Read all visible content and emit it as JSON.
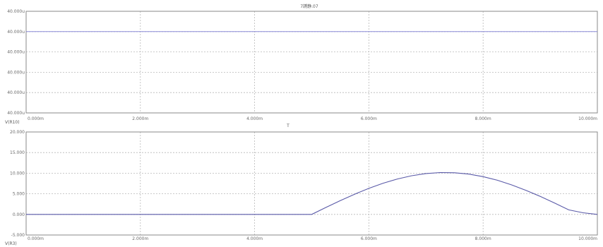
{
  "title": "7誘静.07",
  "x_axis_label": "T",
  "chart_data": [
    {
      "type": "line",
      "title": "7誘静.07",
      "xlabel": "",
      "ylabel": "",
      "trace_label": "V(R10)",
      "x_ticks": [
        "0.000m",
        "2.000m",
        "4.000m",
        "6.000m",
        "8.000m",
        "10.000m"
      ],
      "y_ticks": [
        "40.000u",
        "40.000u",
        "40.000u",
        "40.000u",
        "40.000u",
        "40.000u"
      ],
      "xlim": [
        0,
        10
      ],
      "ylim": [
        0,
        5
      ],
      "x_unit": "ms",
      "series": [
        {
          "x": [
            0,
            10
          ],
          "y": [
            4,
            4
          ]
        }
      ],
      "color": "#8c8cd8",
      "grid": true
    },
    {
      "type": "line",
      "xlabel": "T",
      "ylabel": "",
      "trace_label": "V(R3)",
      "x_ticks": [
        "0.000m",
        "2.000m",
        "4.000m",
        "6.000m",
        "8.000m",
        "10.000m"
      ],
      "y_ticks": [
        "20.000",
        "15.000",
        "10.000",
        "5.000",
        "0.000",
        "-5.000"
      ],
      "xlim": [
        0,
        10
      ],
      "ylim": [
        -5,
        20
      ],
      "x_unit": "ms",
      "series": [
        {
          "x": [
            0,
            5,
            5.25,
            5.5,
            5.75,
            6,
            6.25,
            6.5,
            6.75,
            7,
            7.25,
            7.5,
            7.75,
            8,
            8.25,
            8.5,
            8.75,
            9,
            9.25,
            9.5,
            9.75,
            10
          ],
          "y": [
            0,
            0,
            1.69,
            3.34,
            4.9,
            6.32,
            7.56,
            8.6,
            9.39,
            9.91,
            10.15,
            10.1,
            9.77,
            9.16,
            8.28,
            7.16,
            5.84,
            4.37,
            2.77,
            1.1,
            0.4,
            0
          ]
        }
      ],
      "color": "#5a5aa8",
      "grid": true
    }
  ]
}
